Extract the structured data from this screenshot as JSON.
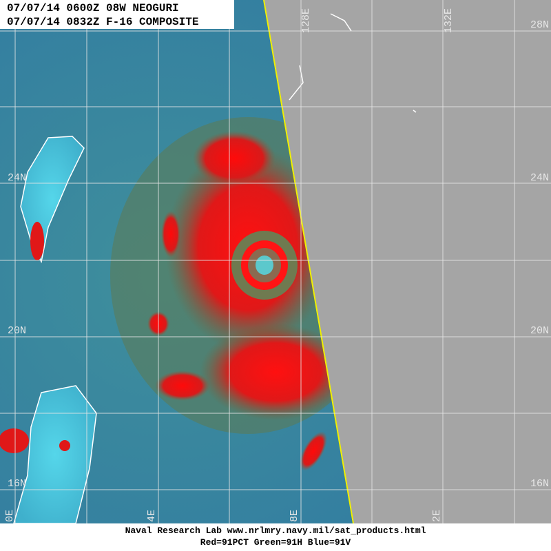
{
  "header": {
    "lines": [
      "07/07/14 0600Z 08W NEOGURI",
      "07/07/14 0832Z F-16 COMPOSITE"
    ]
  },
  "lat_labels": {
    "right": [
      "28N",
      "24N",
      "20N",
      "16N"
    ],
    "left": [
      "24N",
      "20N",
      "16N"
    ]
  },
  "lon_labels": {
    "top": [
      "128E",
      "132E"
    ],
    "bottom": [
      "0E",
      "4E",
      "8E",
      "2E"
    ]
  },
  "footer": {
    "lines": [
      "Naval Research Lab  www.nrlmry.navy.mil/sat_products.html",
      "Red=91PCT  Green=91H  Blue=91V"
    ]
  }
}
